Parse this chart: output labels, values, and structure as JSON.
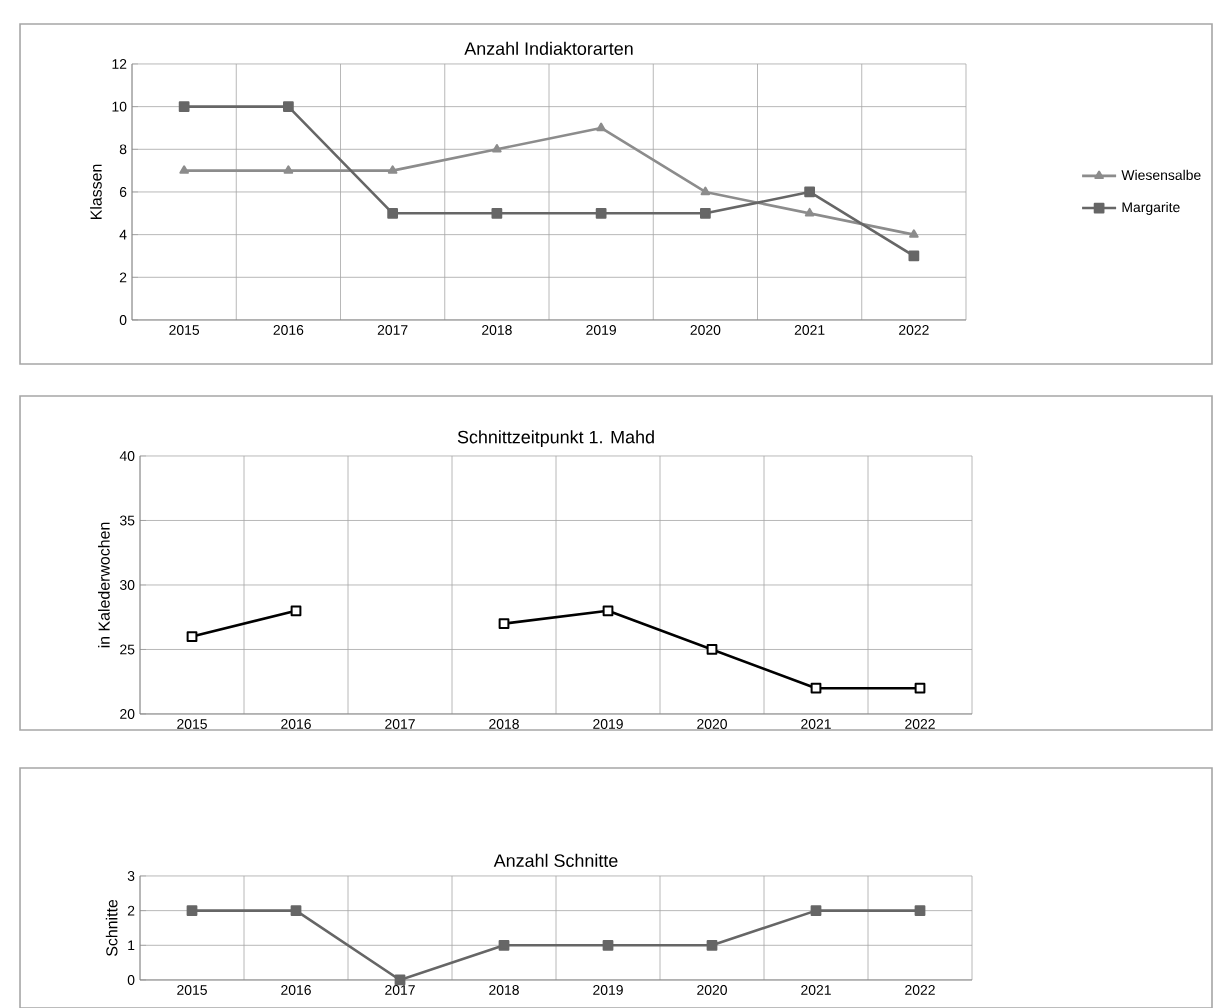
{
  "chart_data": [
    {
      "type": "line",
      "title": "Anzahl Indiaktorarten",
      "ylabel": "Klassen",
      "categories": [
        "2015",
        "2016",
        "2017",
        "2018",
        "2019",
        "2020",
        "2021",
        "2022"
      ],
      "ylim": [
        0,
        12
      ],
      "yticks": [
        0,
        2,
        4,
        6,
        8,
        10,
        12
      ],
      "grid": true,
      "legend": "right",
      "series": [
        {
          "name": "Wiesensalbe",
          "color": "#8c8c8c",
          "marker": "triangle",
          "values": [
            7,
            7,
            7,
            8,
            9,
            6,
            5,
            4
          ]
        },
        {
          "name": "Margarite",
          "color": "#666666",
          "marker": "square",
          "values": [
            10,
            10,
            5,
            5,
            5,
            5,
            6,
            3
          ]
        }
      ]
    },
    {
      "type": "line",
      "title": "Schnittzeitpunkt 1. Mahd",
      "ylabel": "in Kalederwochen",
      "categories": [
        "2015",
        "2016",
        "2017",
        "2018",
        "2019",
        "2020",
        "2021",
        "2022"
      ],
      "ylim": [
        20,
        40
      ],
      "yticks": [
        20,
        25,
        30,
        35,
        40
      ],
      "grid": true,
      "marker": "square",
      "series": [
        {
          "color": "#000000",
          "values": [
            26,
            28,
            null,
            27,
            28,
            25,
            22,
            22
          ]
        }
      ]
    },
    {
      "type": "line",
      "title": "Anzahl Schnitte",
      "ylabel": "Schnitte",
      "categories": [
        "2015",
        "2016",
        "2017",
        "2018",
        "2019",
        "2020",
        "2021",
        "2022"
      ],
      "ylim": [
        0,
        3
      ],
      "yticks": [
        0,
        1,
        2,
        3
      ],
      "grid": true,
      "marker": "square",
      "series": [
        {
          "color": "#666666",
          "values": [
            2,
            2,
            0,
            1,
            1,
            1,
            2,
            2
          ]
        }
      ]
    }
  ]
}
